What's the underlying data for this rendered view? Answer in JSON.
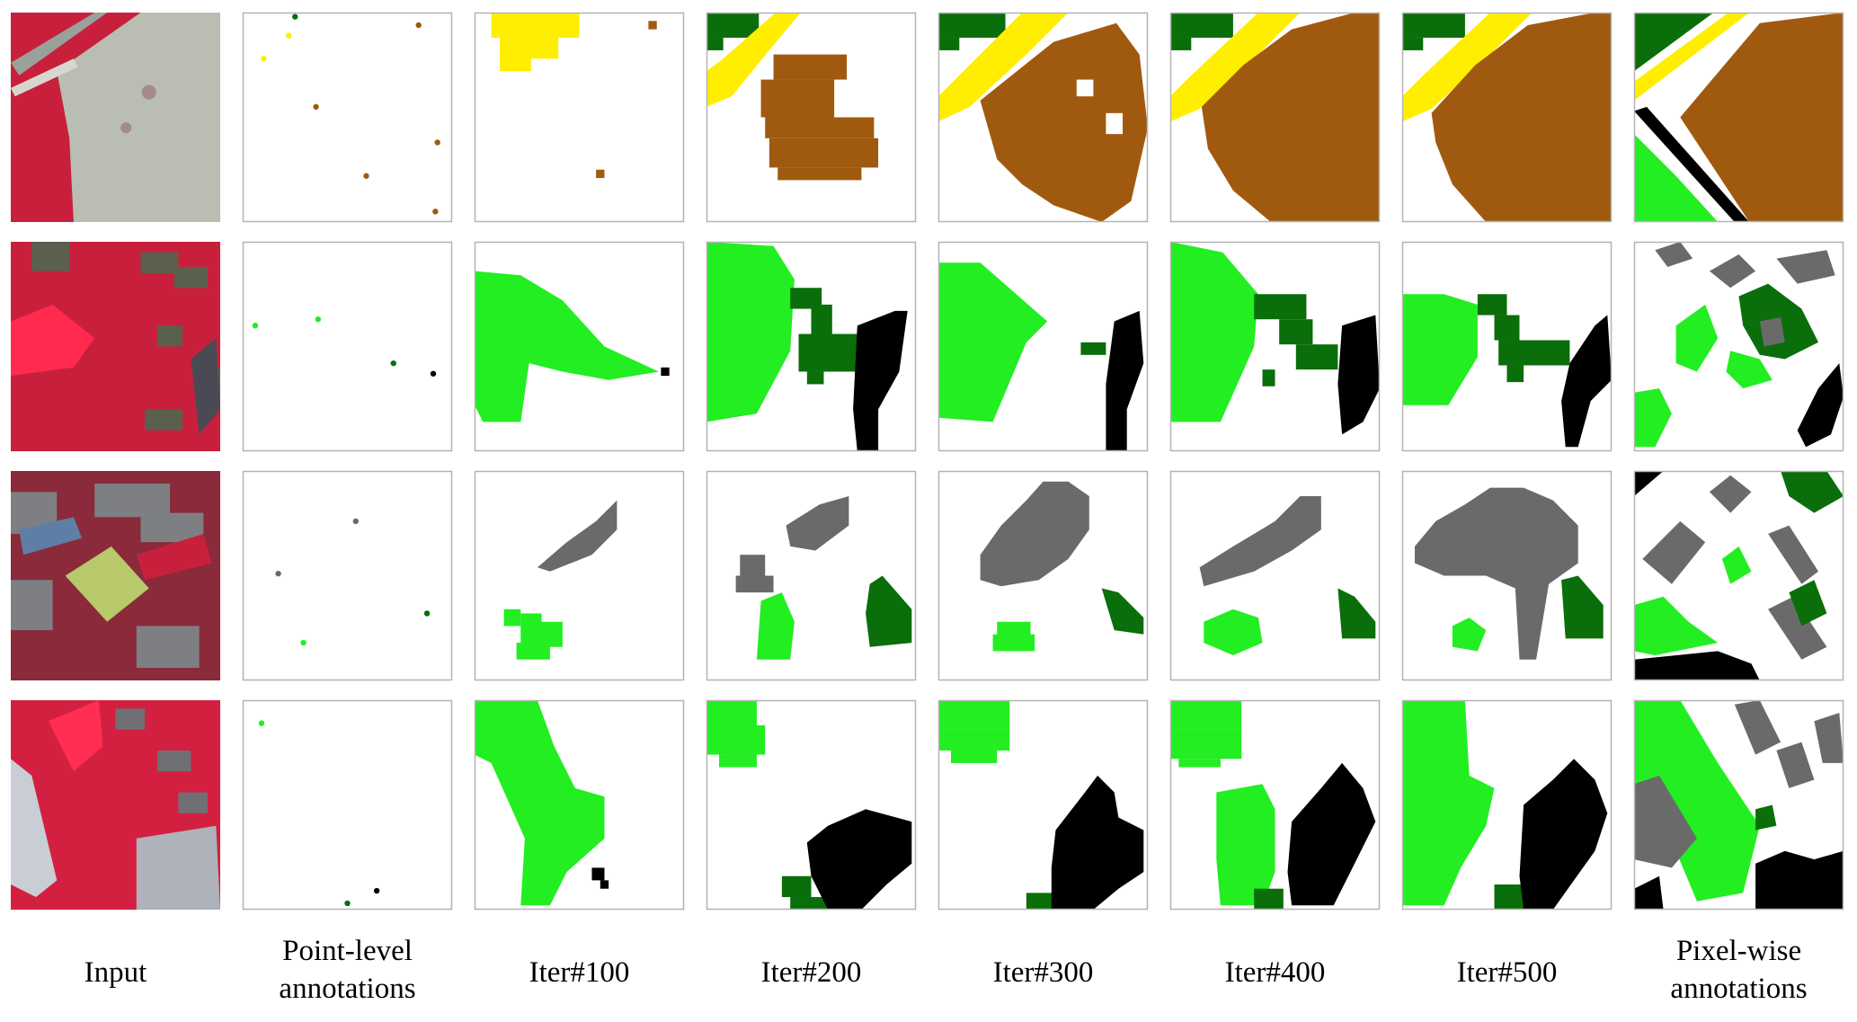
{
  "columns": [
    {
      "id": "input",
      "lines": [
        "Input"
      ]
    },
    {
      "id": "points",
      "lines": [
        "Point-level",
        "annotations"
      ]
    },
    {
      "id": "iter100",
      "lines": [
        "Iter#100"
      ]
    },
    {
      "id": "iter200",
      "lines": [
        "Iter#200"
      ]
    },
    {
      "id": "iter300",
      "lines": [
        "Iter#300"
      ]
    },
    {
      "id": "iter400",
      "lines": [
        "Iter#400"
      ]
    },
    {
      "id": "iter500",
      "lines": [
        "Iter#500"
      ]
    },
    {
      "id": "pixel",
      "lines": [
        "Pixel-wise",
        "annotations"
      ]
    }
  ],
  "class_colors": {
    "dark_green": "#0a6e0a",
    "light_green": "#22ee22",
    "yellow": "#ffee00",
    "brown": "#a05a10",
    "gray": "#6a6a6a",
    "black": "#000000",
    "infrared_red": "#e0173a"
  },
  "rows": [
    {
      "input": {
        "base": "#b9bdb2",
        "accent": "#e0173a"
      },
      "points": [
        {
          "color": "dark_green"
        },
        {
          "color": "yellow"
        },
        {
          "color": "yellow"
        },
        {
          "color": "brown"
        },
        {
          "color": "brown"
        },
        {
          "color": "brown"
        },
        {
          "color": "brown"
        },
        {
          "color": "brown"
        }
      ],
      "panels": {
        "iter100": [
          {
            "color": "yellow"
          },
          {
            "color": "brown"
          }
        ],
        "iter200": [
          {
            "color": "dark_green"
          },
          {
            "color": "yellow"
          },
          {
            "color": "brown"
          }
        ],
        "iter300": [
          {
            "color": "dark_green"
          },
          {
            "color": "yellow"
          },
          {
            "color": "brown"
          }
        ],
        "iter400": [
          {
            "color": "dark_green"
          },
          {
            "color": "yellow"
          },
          {
            "color": "brown"
          }
        ],
        "iter500": [
          {
            "color": "dark_green"
          },
          {
            "color": "yellow"
          },
          {
            "color": "brown"
          }
        ],
        "pixel": [
          {
            "color": "dark_green"
          },
          {
            "color": "yellow"
          },
          {
            "color": "brown"
          },
          {
            "color": "light_green"
          },
          {
            "color": "black"
          }
        ]
      }
    },
    {
      "input": {
        "base": "#c8203c",
        "accent": "#5b5f4e"
      },
      "points": [
        {
          "color": "light_green"
        },
        {
          "color": "light_green"
        },
        {
          "color": "dark_green"
        },
        {
          "color": "black"
        }
      ],
      "panels": {
        "iter100": [
          {
            "color": "light_green"
          },
          {
            "color": "black"
          }
        ],
        "iter200": [
          {
            "color": "light_green"
          },
          {
            "color": "dark_green"
          },
          {
            "color": "black"
          }
        ],
        "iter300": [
          {
            "color": "light_green"
          },
          {
            "color": "dark_green"
          },
          {
            "color": "black"
          }
        ],
        "iter400": [
          {
            "color": "light_green"
          },
          {
            "color": "dark_green"
          },
          {
            "color": "black"
          }
        ],
        "iter500": [
          {
            "color": "light_green"
          },
          {
            "color": "dark_green"
          },
          {
            "color": "black"
          }
        ],
        "pixel": [
          {
            "color": "light_green"
          },
          {
            "color": "dark_green"
          },
          {
            "color": "gray"
          },
          {
            "color": "black"
          }
        ]
      }
    },
    {
      "input": {
        "base": "#8a2a3a",
        "accent": "#b7c96a"
      },
      "points": [
        {
          "color": "gray"
        },
        {
          "color": "gray"
        },
        {
          "color": "dark_green"
        },
        {
          "color": "light_green"
        }
      ],
      "panels": {
        "iter100": [
          {
            "color": "gray"
          },
          {
            "color": "light_green"
          }
        ],
        "iter200": [
          {
            "color": "gray"
          },
          {
            "color": "light_green"
          },
          {
            "color": "dark_green"
          }
        ],
        "iter300": [
          {
            "color": "gray"
          },
          {
            "color": "light_green"
          },
          {
            "color": "dark_green"
          }
        ],
        "iter400": [
          {
            "color": "gray"
          },
          {
            "color": "light_green"
          },
          {
            "color": "dark_green"
          }
        ],
        "iter500": [
          {
            "color": "gray"
          },
          {
            "color": "light_green"
          },
          {
            "color": "dark_green"
          }
        ],
        "pixel": [
          {
            "color": "gray"
          },
          {
            "color": "light_green"
          },
          {
            "color": "dark_green"
          },
          {
            "color": "black"
          }
        ]
      }
    },
    {
      "input": {
        "base": "#d42040",
        "accent": "#c9cdd4"
      },
      "points": [
        {
          "color": "light_green"
        },
        {
          "color": "dark_green"
        },
        {
          "color": "black"
        }
      ],
      "panels": {
        "iter100": [
          {
            "color": "light_green"
          },
          {
            "color": "black"
          }
        ],
        "iter200": [
          {
            "color": "light_green"
          },
          {
            "color": "dark_green"
          },
          {
            "color": "black"
          }
        ],
        "iter300": [
          {
            "color": "light_green"
          },
          {
            "color": "dark_green"
          },
          {
            "color": "black"
          }
        ],
        "iter400": [
          {
            "color": "light_green"
          },
          {
            "color": "dark_green"
          },
          {
            "color": "black"
          }
        ],
        "iter500": [
          {
            "color": "light_green"
          },
          {
            "color": "dark_green"
          },
          {
            "color": "black"
          }
        ],
        "pixel": [
          {
            "color": "light_green"
          },
          {
            "color": "gray"
          },
          {
            "color": "dark_green"
          },
          {
            "color": "black"
          }
        ]
      }
    }
  ]
}
